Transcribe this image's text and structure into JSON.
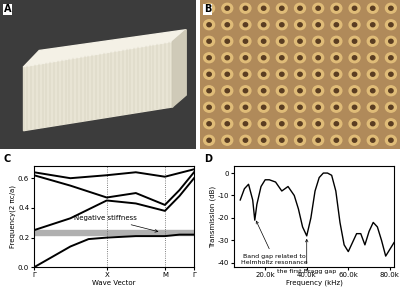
{
  "panel_labels": [
    "A",
    "B",
    "C",
    "D"
  ],
  "chart_data": [
    {
      "type": "line",
      "xlabel": "Wave Vector",
      "ylabel": "Frequency(2 πc/a)",
      "xlim": [
        0,
        2.2
      ],
      "xticks": [
        {
          "value": 0,
          "label": "Γ"
        },
        {
          "value": 1,
          "label": "X"
        },
        {
          "value": 1.8,
          "label": "M"
        },
        {
          "value": 2.2,
          "label": "Γ"
        }
      ],
      "ylim": [
        0,
        0.68
      ],
      "yticks": [
        {
          "value": 0,
          "label": "0.0"
        },
        0.2,
        0.4,
        0.6
      ],
      "grid": "x",
      "color": "#000000",
      "line_style": "solid",
      "shaded_band": {
        "y": [
          0.22,
          0.25
        ],
        "color": "#b0b0b0"
      },
      "series": [
        {
          "x": [
            0,
            0.25,
            0.5,
            0.75,
            1,
            1.4,
            1.8,
            2.0,
            2.2
          ],
          "values": [
            0,
            0.07,
            0.14,
            0.19,
            0.2,
            0.21,
            0.21,
            0.22,
            0.22
          ]
        },
        {
          "x": [
            0,
            0.5,
            1,
            1.4,
            1.8,
            2.0,
            2.2
          ],
          "values": [
            0.25,
            0.33,
            0.45,
            0.43,
            0.38,
            0.48,
            0.6
          ]
        },
        {
          "x": [
            0,
            0.5,
            1,
            1.4,
            1.8,
            2.0,
            2.2
          ],
          "values": [
            0.62,
            0.55,
            0.47,
            0.5,
            0.42,
            0.52,
            0.64
          ]
        },
        {
          "x": [
            0,
            0.5,
            1,
            1.4,
            1.8,
            2.2
          ],
          "values": [
            0.64,
            0.6,
            0.62,
            0.64,
            0.61,
            0.66
          ]
        }
      ],
      "annotations": [
        {
          "text": "Negative stiffness",
          "x": 1.75,
          "y": 0.235
        }
      ]
    },
    {
      "type": "line",
      "xlabel": "Frequency (kHz)",
      "ylabel": "Transmission (dB)",
      "xlim": [
        5000,
        82000
      ],
      "xticks": [
        {
          "value": 20000,
          "label": "20.0k"
        },
        {
          "value": 40000,
          "label": "40.0k"
        },
        {
          "value": 60000,
          "label": "60.0k"
        },
        {
          "value": 80000,
          "label": "80.0k"
        }
      ],
      "ylim": [
        -42,
        3
      ],
      "yticks": [
        -40,
        -30,
        -20,
        -10,
        0
      ],
      "color": "#000000",
      "line_style": "solid",
      "x": [
        8000,
        10000,
        12000,
        14000,
        15000,
        16000,
        18000,
        20000,
        22000,
        25000,
        28000,
        31000,
        34000,
        36000,
        38000,
        40000,
        42000,
        44000,
        46000,
        48000,
        50000,
        52000,
        54000,
        56000,
        58000,
        60000,
        62000,
        64000,
        66000,
        68000,
        70000,
        72000,
        74000,
        76000,
        78000,
        80000,
        82000
      ],
      "values": [
        -12,
        -7,
        -5,
        -12,
        -21,
        -14,
        -6,
        -3,
        -3,
        -4,
        -8,
        -6,
        -10,
        -16,
        -24,
        -28,
        -20,
        -8,
        -2,
        0,
        0,
        -1,
        -8,
        -22,
        -32,
        -35,
        -31,
        -27,
        -27,
        -32,
        -26,
        -22,
        -24,
        -30,
        -37,
        -34,
        -31
      ],
      "annotations": [
        {
          "text": "Band gap related to\nHelmholtz resonance",
          "x": 15000,
          "y": -20
        },
        {
          "text": "the first Bragg gap",
          "x": 40000,
          "y": -28
        }
      ]
    }
  ]
}
